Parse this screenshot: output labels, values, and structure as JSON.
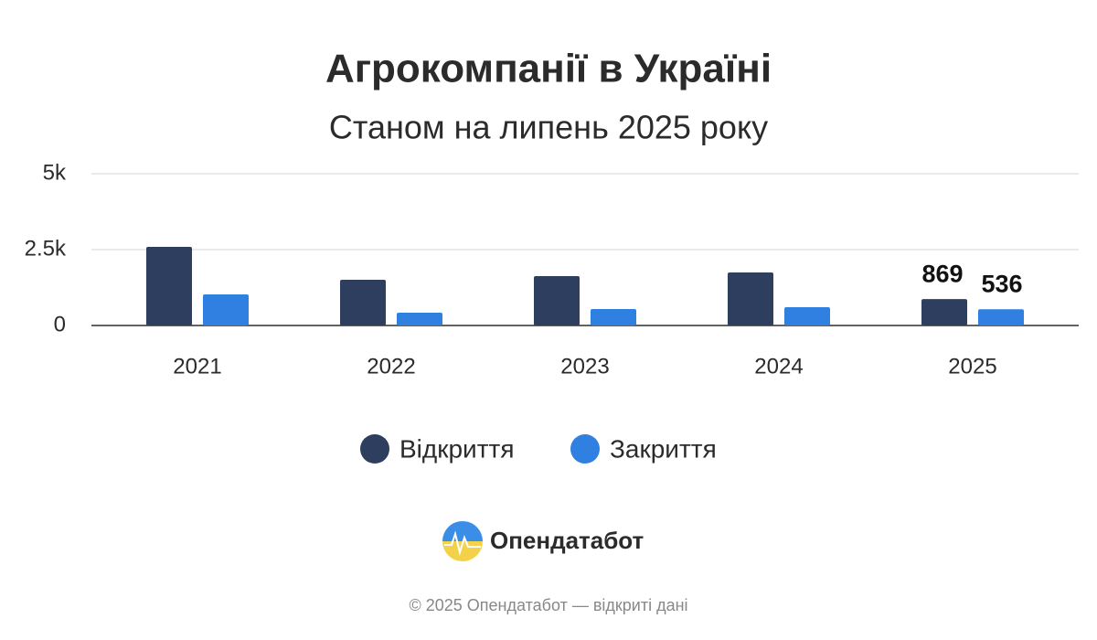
{
  "chart_data": {
    "type": "bar",
    "title": "Агрокомпанії в Україні",
    "subtitle": "Станом на липень 2025 року",
    "categories": [
      "2021",
      "2022",
      "2023",
      "2024",
      "2025"
    ],
    "series": [
      {
        "name": "Відкриття",
        "color": "#2d3e5e",
        "values": [
          2590,
          1506,
          1627,
          1747,
          869
        ],
        "value_labels": [
          null,
          null,
          null,
          null,
          "869"
        ]
      },
      {
        "name": "Закриття",
        "color": "#2f80e0",
        "values": [
          1024,
          422,
          542,
          602,
          536
        ],
        "value_labels": [
          null,
          null,
          null,
          null,
          "536"
        ]
      }
    ],
    "ylim": [
      0,
      5000
    ],
    "yticks": [
      0,
      {
        "value": 2500,
        "label": "2.5k"
      },
      {
        "value": 5000,
        "label": "5k"
      }
    ],
    "grid": true,
    "legend": "bottom"
  },
  "brand": "Опендатабот",
  "footer": "© 2025 Опендатабот — відкриті дані"
}
